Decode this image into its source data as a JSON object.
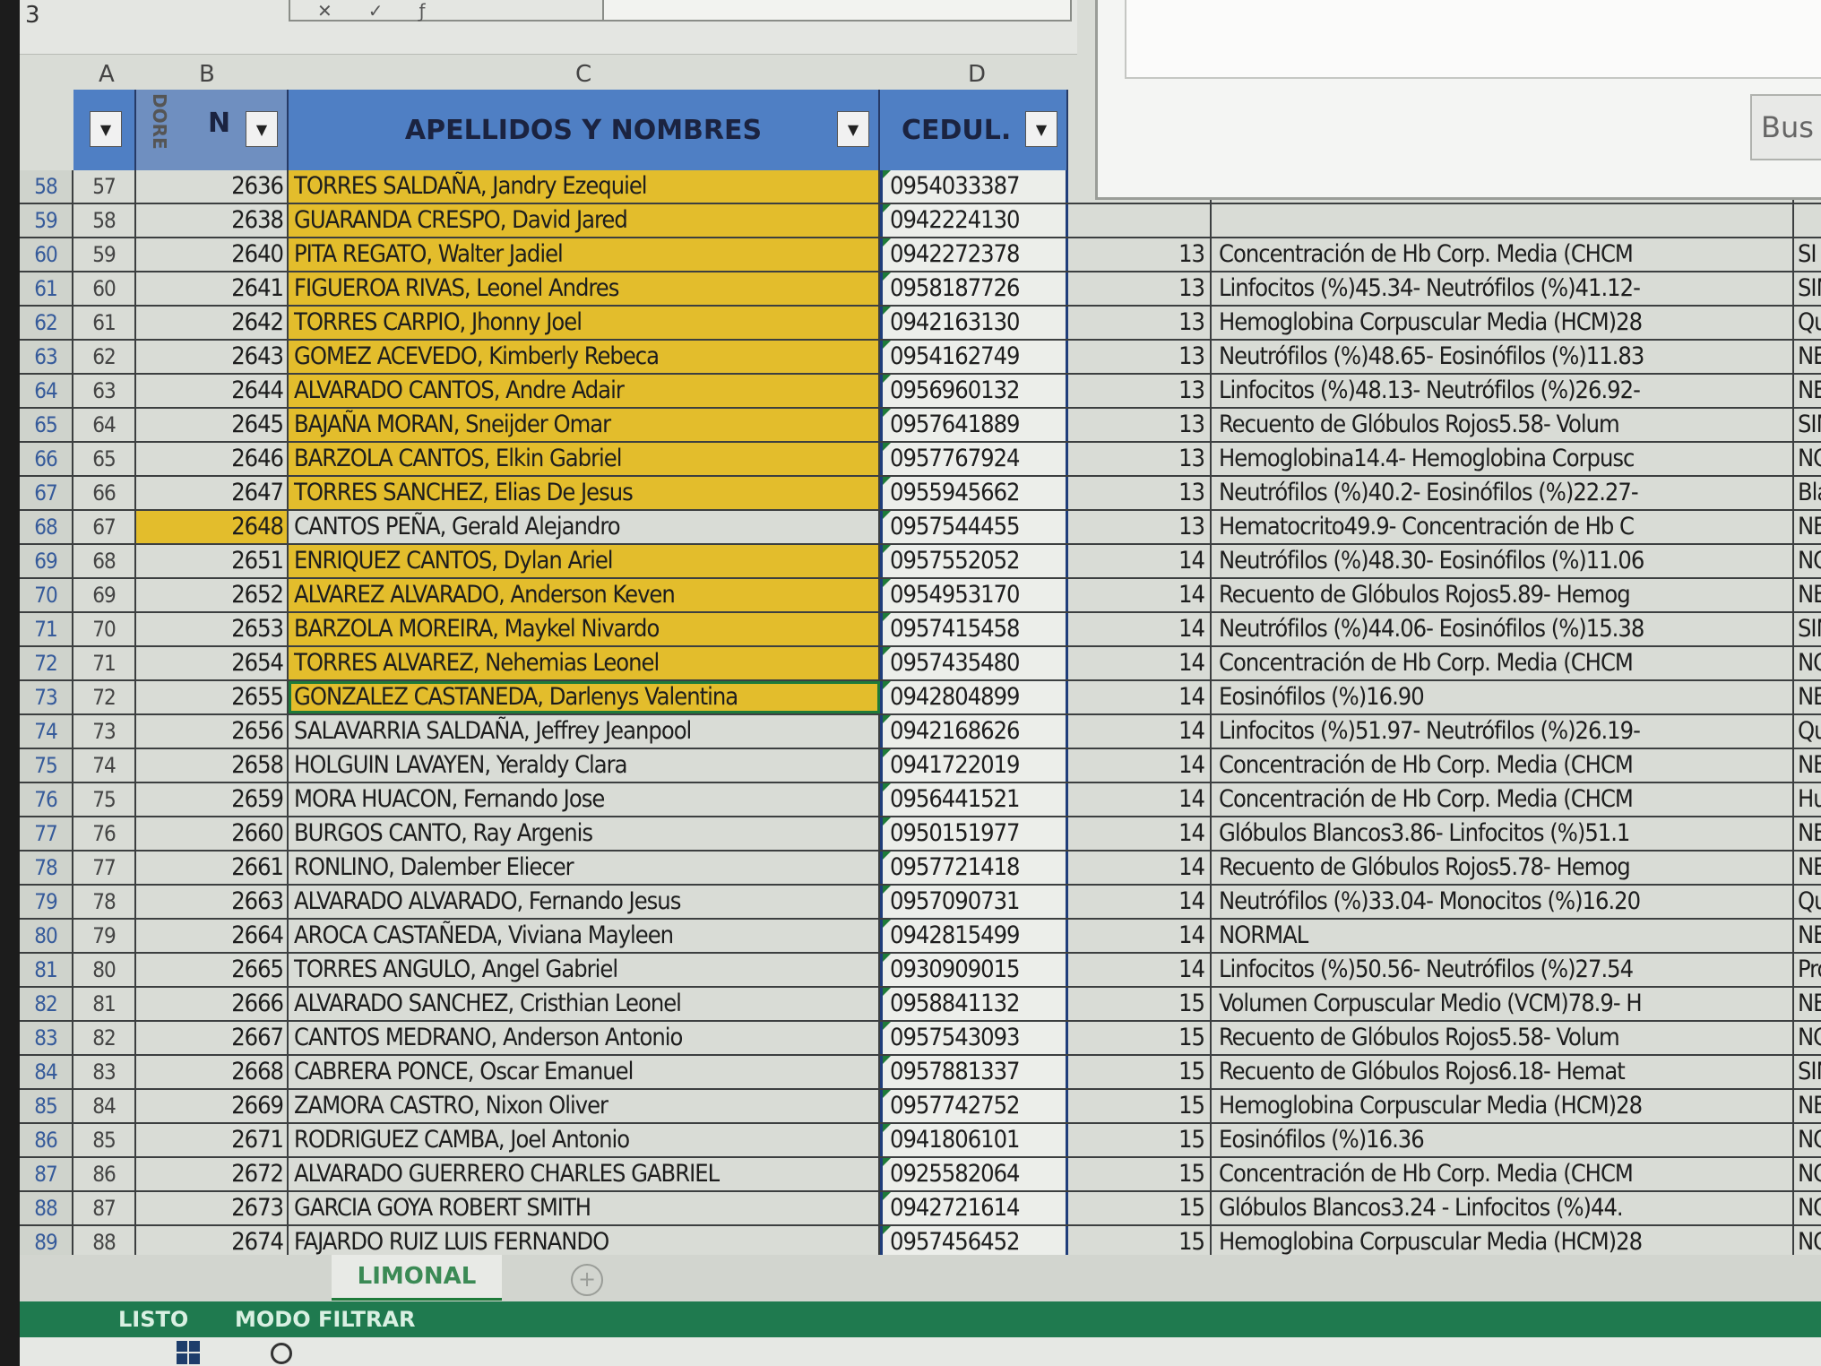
{
  "namebox": "3",
  "column_letters": [
    "A",
    "B",
    "C",
    "D"
  ],
  "headers": {
    "a": "",
    "b": "N",
    "b_stacked": "DORE",
    "c": "APELLIDOS Y NOMBRES",
    "d": "CEDUL."
  },
  "dialog": {
    "button": "Bus"
  },
  "rows": [
    {
      "r": "58",
      "a": "57",
      "n": "2636",
      "name": "TORRES SALDAÑA, Jandry Ezequiel",
      "ced": "0954033387",
      "age": "",
      "exam": "",
      "res": "",
      "hl": "name"
    },
    {
      "r": "59",
      "a": "58",
      "n": "2638",
      "name": "GUARANDA CRESPO, David Jared",
      "ced": "0942224130",
      "age": "",
      "exam": "",
      "res": "",
      "hl": "name"
    },
    {
      "r": "60",
      "a": "59",
      "n": "2640",
      "name": "PITA REGATO, Walter Jadiel",
      "ced": "0942272378",
      "age": "13",
      "exam": "Concentración de Hb Corp. Media (CHCM",
      "res": "SI",
      "hl": "name"
    },
    {
      "r": "61",
      "a": "60",
      "n": "2641",
      "name": "FIGUEROA RIVAS, Leonel Andres",
      "ced": "0958187726",
      "age": "13",
      "exam": "Linfocitos (%)45.34- Neutrófilos (%)41.12-",
      "res": "SIN",
      "hl": "name"
    },
    {
      "r": "62",
      "a": "61",
      "n": "2642",
      "name": "TORRES CARPIO, Jhonny Joel",
      "ced": "0942163130",
      "age": "13",
      "exam": "Hemoglobina Corpuscular Media (HCM)28",
      "res": "Qu",
      "hl": "name"
    },
    {
      "r": "63",
      "a": "62",
      "n": "2643",
      "name": "GOMEZ ACEVEDO, Kimberly Rebeca",
      "ced": "0954162749",
      "age": "13",
      "exam": "Neutrófilos (%)48.65- Eosinófilos (%)11.83",
      "res": "NEG",
      "hl": "name"
    },
    {
      "r": "64",
      "a": "63",
      "n": "2644",
      "name": "ALVARADO CANTOS, Andre Adair",
      "ced": "0956960132",
      "age": "13",
      "exam": "Linfocitos (%)48.13- Neutrófilos (%)26.92-",
      "res": "NEG",
      "hl": "name"
    },
    {
      "r": "65",
      "a": "64",
      "n": "2645",
      "name": "BAJAÑA MORAN, Sneijder Omar",
      "ced": "0957641889",
      "age": "13",
      "exam": "Recuento de Glóbulos Rojos5.58- Volum",
      "res": "SIN",
      "hl": "name"
    },
    {
      "r": "66",
      "a": "65",
      "n": "2646",
      "name": "BARZOLA CANTOS, Elkin Gabriel",
      "ced": "0957767924",
      "age": "13",
      "exam": "Hemoglobina14.4- Hemoglobina Corpusc",
      "res": "NO L",
      "hl": "name"
    },
    {
      "r": "67",
      "a": "66",
      "n": "2647",
      "name": "TORRES SANCHEZ, Elias De Jesus",
      "ced": "0955945662",
      "age": "13",
      "exam": "Neutrófilos (%)40.2- Eosinófilos (%)22.27-",
      "res": "Blas",
      "hl": "name"
    },
    {
      "r": "68",
      "a": "67",
      "n": "2648",
      "name": "CANTOS PEÑA, Gerald Alejandro",
      "ced": "0957544455",
      "age": "13",
      "exam": "Hematocrito49.9- Concentración de Hb C",
      "res": "NEG",
      "hl": "num"
    },
    {
      "r": "69",
      "a": "68",
      "n": "2651",
      "name": "ENRIQUEZ CANTOS, Dylan Ariel",
      "ced": "0957552052",
      "age": "14",
      "exam": "Neutrófilos (%)48.30- Eosinófilos (%)11.06",
      "res": "NO LL",
      "hl": "name"
    },
    {
      "r": "70",
      "a": "69",
      "n": "2652",
      "name": "ALVAREZ ALVARADO, Anderson Keven",
      "ced": "0954953170",
      "age": "14",
      "exam": "Recuento de Glóbulos Rojos5.89- Hemog",
      "res": "NEGA",
      "hl": "name"
    },
    {
      "r": "71",
      "a": "70",
      "n": "2653",
      "name": "BARZOLA MOREIRA, Maykel Nivardo",
      "ced": "0957415458",
      "age": "14",
      "exam": "Neutrófilos (%)44.06- Eosinófilos (%)15.38",
      "res": "SIN M",
      "hl": "name"
    },
    {
      "r": "72",
      "a": "71",
      "n": "2654",
      "name": "TORRES ALVAREZ, Nehemias Leonel",
      "ced": "0957435480",
      "age": "14",
      "exam": "Concentración de Hb Corp. Media (CHCM",
      "res": "NO LL",
      "hl": "name"
    },
    {
      "r": "73",
      "a": "72",
      "n": "2655",
      "name": "GONZALEZ CASTANEDA, Darlenys Valentina",
      "ced": "0942804899",
      "age": "14",
      "exam": "Eosinófilos (%)16.90",
      "res": "NEGAT",
      "hl": "selected"
    },
    {
      "r": "74",
      "a": "73",
      "n": "2656",
      "name": "SALAVARRIA SALDAÑA, Jeffrey Jeanpool",
      "ced": "0942168626",
      "age": "14",
      "exam": "Linfocitos (%)51.97- Neutrófilos (%)26.19-",
      "res": "Quiste",
      "hl": ""
    },
    {
      "r": "75",
      "a": "74",
      "n": "2658",
      "name": "HOLGUIN LAVAYEN, Yeraldy Clara",
      "ced": "0941722019",
      "age": "14",
      "exam": "Concentración de Hb Corp. Media (CHCM",
      "res": "NEGAT",
      "hl": ""
    },
    {
      "r": "76",
      "a": "75",
      "n": "2659",
      "name": "MORA HUACON, Fernando Jose",
      "ced": "0956441521",
      "age": "14",
      "exam": "Concentración de Hb Corp. Media (CHCM",
      "res": "Huevo A",
      "hl": ""
    },
    {
      "r": "77",
      "a": "76",
      "n": "2660",
      "name": "BURGOS CANTO, Ray Argenis",
      "ced": "0950151977",
      "age": "14",
      "exam": "Glóbulos Blancos3.86- Linfocitos (%)51.1",
      "res": "NEGATI",
      "hl": ""
    },
    {
      "r": "78",
      "a": "77",
      "n": "2661",
      "name": "RONLINO, Dalember Eliecer",
      "ced": "0957721418",
      "age": "14",
      "exam": "Recuento de Glóbulos Rojos5.78- Hemog",
      "res": "NEGATI",
      "hl": ""
    },
    {
      "r": "79",
      "a": "78",
      "n": "2663",
      "name": "ALVARADO ALVARADO, Fernando Jesus",
      "ced": "0957090731",
      "age": "14",
      "exam": "Neutrófilos (%)33.04- Monocitos (%)16.20",
      "res": "Quistes d",
      "hl": ""
    },
    {
      "r": "80",
      "a": "79",
      "n": "2664",
      "name": "AROCA CASTAÑEDA, Viviana Mayleen",
      "ced": "0942815499",
      "age": "14",
      "exam": "NORMAL",
      "res": "NEGATIV",
      "hl": ""
    },
    {
      "r": "81",
      "a": "80",
      "n": "2665",
      "name": "TORRES ANGULO, Angel Gabriel",
      "ced": "0930909015",
      "age": "14",
      "exam": "Linfocitos (%)50.56- Neutrófilos (%)27.54",
      "res": "Proglótide",
      "hl": ""
    },
    {
      "r": "82",
      "a": "81",
      "n": "2666",
      "name": "ALVARADO SANCHEZ, Cristhian Leonel",
      "ced": "0958841132",
      "age": "15",
      "exam": "Volumen Corpuscular Medio (VCM)78.9- H",
      "res": "NEGATIVO",
      "hl": ""
    },
    {
      "r": "83",
      "a": "82",
      "n": "2667",
      "name": "CANTOS MEDRANO, Anderson Antonio",
      "ced": "0957543093",
      "age": "15",
      "exam": "Recuento de Glóbulos Rojos5.58- Volum",
      "res": "NO LLEVA",
      "hl": ""
    },
    {
      "r": "84",
      "a": "83",
      "n": "2668",
      "name": "CABRERA PONCE, Oscar Emanuel",
      "ced": "0957881337",
      "age": "15",
      "exam": "Recuento de Glóbulos Rojos6.18- Hemat",
      "res": "SIN MUES",
      "hl": ""
    },
    {
      "r": "85",
      "a": "84",
      "n": "2669",
      "name": "ZAMORA CASTRO, Nixon Oliver",
      "ced": "0957742752",
      "age": "15",
      "exam": "Hemoglobina Corpuscular Media (HCM)28",
      "res": "NEGATIVO",
      "hl": ""
    },
    {
      "r": "86",
      "a": "85",
      "n": "2671",
      "name": "RODRIGUEZ CAMBA, Joel Antonio",
      "ced": "0941806101",
      "age": "15",
      "exam": "Eosinófilos (%)16.36",
      "res": "NO ENTREG",
      "hl": ""
    },
    {
      "r": "87",
      "a": "86",
      "n": "2672",
      "name": "ALVARADO GUERRERO CHARLES GABRIEL",
      "ced": "0925582064",
      "age": "15",
      "exam": "Concentración de Hb Corp. Media (CHCM",
      "res": "NO ENTREG",
      "hl": ""
    },
    {
      "r": "88",
      "a": "87",
      "n": "2673",
      "name": "GARCIA GOYA ROBERT SMITH",
      "ced": "0942721614",
      "age": "15",
      "exam": "Glóbulos Blancos3.24 - Linfocitos (%)44.",
      "res": "NO ENTREG",
      "hl": ""
    },
    {
      "r": "89",
      "a": "88",
      "n": "2674",
      "name": "FAJARDO RUIZ LUIS FERNANDO",
      "ced": "0957456452",
      "age": "15",
      "exam": "Hemoglobina Corpuscular Media (HCM)28",
      "res": "NO ENTREG",
      "hl": ""
    }
  ],
  "sheet_tab": "LIMONAL",
  "add_sheet_icon": "plus-circle-icon",
  "status": {
    "ready": "LISTO",
    "mode": "MODO FILTRAR"
  },
  "colors": {
    "header_blue": "#4f7fc4",
    "highlight_yellow": "#e3bd2c",
    "status_green": "#1f7a4f"
  }
}
